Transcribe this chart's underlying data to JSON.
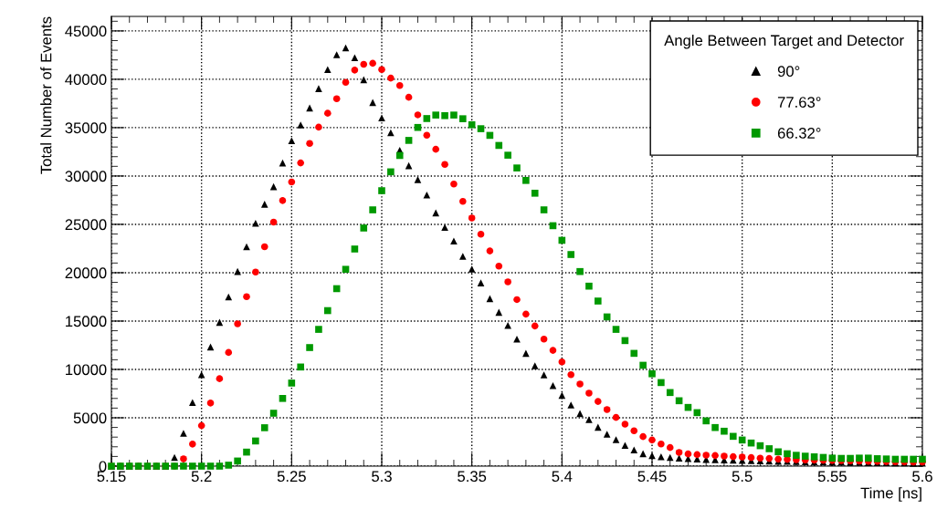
{
  "chart_data": {
    "type": "scatter",
    "xlabel": "Time [ns]",
    "ylabel": "Total Number of Events",
    "legend_title": "Angle Between Target and Detector",
    "legend": "top right",
    "grid": true,
    "xlim": [
      5.15,
      5.6
    ],
    "xticks": [
      5.15,
      5.2,
      5.25,
      5.3,
      5.35,
      5.4,
      5.45,
      5.5,
      5.55,
      5.6
    ],
    "ylim": [
      0,
      46500
    ],
    "yticks": [
      0,
      5000,
      10000,
      15000,
      20000,
      25000,
      30000,
      35000,
      40000,
      45000
    ],
    "x": [
      5.15,
      5.155,
      5.16,
      5.165,
      5.17,
      5.175,
      5.18,
      5.185,
      5.19,
      5.195,
      5.2,
      5.205,
      5.21,
      5.215,
      5.22,
      5.225,
      5.23,
      5.235,
      5.24,
      5.245,
      5.25,
      5.255,
      5.26,
      5.265,
      5.27,
      5.275,
      5.28,
      5.285,
      5.29,
      5.295,
      5.3,
      5.305,
      5.31,
      5.315,
      5.32,
      5.325,
      5.33,
      5.335,
      5.34,
      5.345,
      5.35,
      5.355,
      5.36,
      5.365,
      5.37,
      5.375,
      5.38,
      5.385,
      5.39,
      5.395,
      5.4,
      5.405,
      5.41,
      5.415,
      5.42,
      5.425,
      5.43,
      5.435,
      5.44,
      5.445,
      5.45,
      5.455,
      5.46,
      5.465,
      5.47,
      5.475,
      5.48,
      5.485,
      5.49,
      5.495,
      5.5,
      5.505,
      5.51,
      5.515,
      5.52,
      5.525,
      5.53,
      5.535,
      5.54,
      5.545,
      5.55,
      5.555,
      5.56,
      5.565,
      5.57,
      5.575,
      5.58,
      5.585,
      5.59,
      5.595,
      5.6
    ],
    "series": [
      {
        "name": "90°",
        "color": "#000000",
        "marker": "triangle",
        "values": [
          0,
          0,
          0,
          0,
          0,
          0,
          0,
          900,
          3400,
          6580,
          9450,
          12320,
          14870,
          17490,
          20130,
          22680,
          25110,
          27080,
          28900,
          31350,
          33650,
          35280,
          37030,
          39040,
          41010,
          42540,
          43240,
          42230,
          39960,
          37600,
          36010,
          34480,
          32660,
          31070,
          29630,
          28040,
          26190,
          24690,
          23280,
          21690,
          20370,
          18950,
          17320,
          15900,
          14550,
          13140,
          11660,
          10370,
          9430,
          8330,
          7320,
          6320,
          5440,
          4810,
          4020,
          3300,
          2740,
          2140,
          1670,
          1290,
          1100,
          970,
          900,
          830,
          780,
          740,
          700,
          670,
          640,
          610,
          590,
          570,
          550,
          530,
          510,
          490,
          470,
          450,
          430,
          420,
          410,
          400,
          390,
          380,
          370,
          360,
          350,
          340,
          330,
          320,
          310
        ]
      },
      {
        "name": "77.63°",
        "color": "#ff0000",
        "marker": "circle",
        "values": [
          0,
          0,
          0,
          0,
          0,
          0,
          0,
          0,
          750,
          2280,
          4190,
          6520,
          9040,
          11750,
          14710,
          17520,
          20070,
          22680,
          25230,
          27460,
          29380,
          31350,
          33370,
          35050,
          36490,
          37990,
          39680,
          40950,
          41550,
          41650,
          41010,
          40120,
          39350,
          38140,
          36320,
          34220,
          32760,
          31200,
          29170,
          27380,
          25650,
          23980,
          22250,
          20680,
          19050,
          17220,
          15720,
          14490,
          13140,
          11970,
          10780,
          9460,
          8490,
          7540,
          6690,
          5850,
          5030,
          4340,
          3650,
          3050,
          2700,
          2290,
          1920,
          1410,
          1260,
          1190,
          1130,
          1100,
          1040,
          980,
          940,
          880,
          820,
          790,
          720,
          690,
          660,
          640,
          620,
          600,
          580,
          560,
          540,
          520,
          500,
          480,
          460,
          450,
          440,
          430,
          420
        ]
      },
      {
        "name": "66.32°",
        "color": "#009900",
        "marker": "square",
        "values": [
          0,
          0,
          0,
          0,
          0,
          0,
          0,
          0,
          0,
          0,
          0,
          0,
          0,
          100,
          530,
          1450,
          2600,
          3970,
          5470,
          7000,
          8590,
          10250,
          12260,
          14140,
          16080,
          18350,
          20350,
          22450,
          24620,
          26500,
          28480,
          30430,
          32120,
          33680,
          35020,
          35940,
          36300,
          36240,
          36300,
          35920,
          35300,
          34890,
          34200,
          33160,
          32150,
          30830,
          29540,
          28220,
          26500,
          24860,
          23350,
          21880,
          20120,
          18610,
          17070,
          15430,
          14140,
          12980,
          11660,
          10430,
          9550,
          8640,
          7610,
          6760,
          6070,
          5530,
          4680,
          3990,
          3610,
          3080,
          2700,
          2390,
          2110,
          1800,
          1480,
          1280,
          1120,
          1030,
          960,
          900,
          830,
          800,
          800,
          830,
          830,
          770,
          740,
          710,
          710,
          710,
          710
        ]
      }
    ]
  }
}
